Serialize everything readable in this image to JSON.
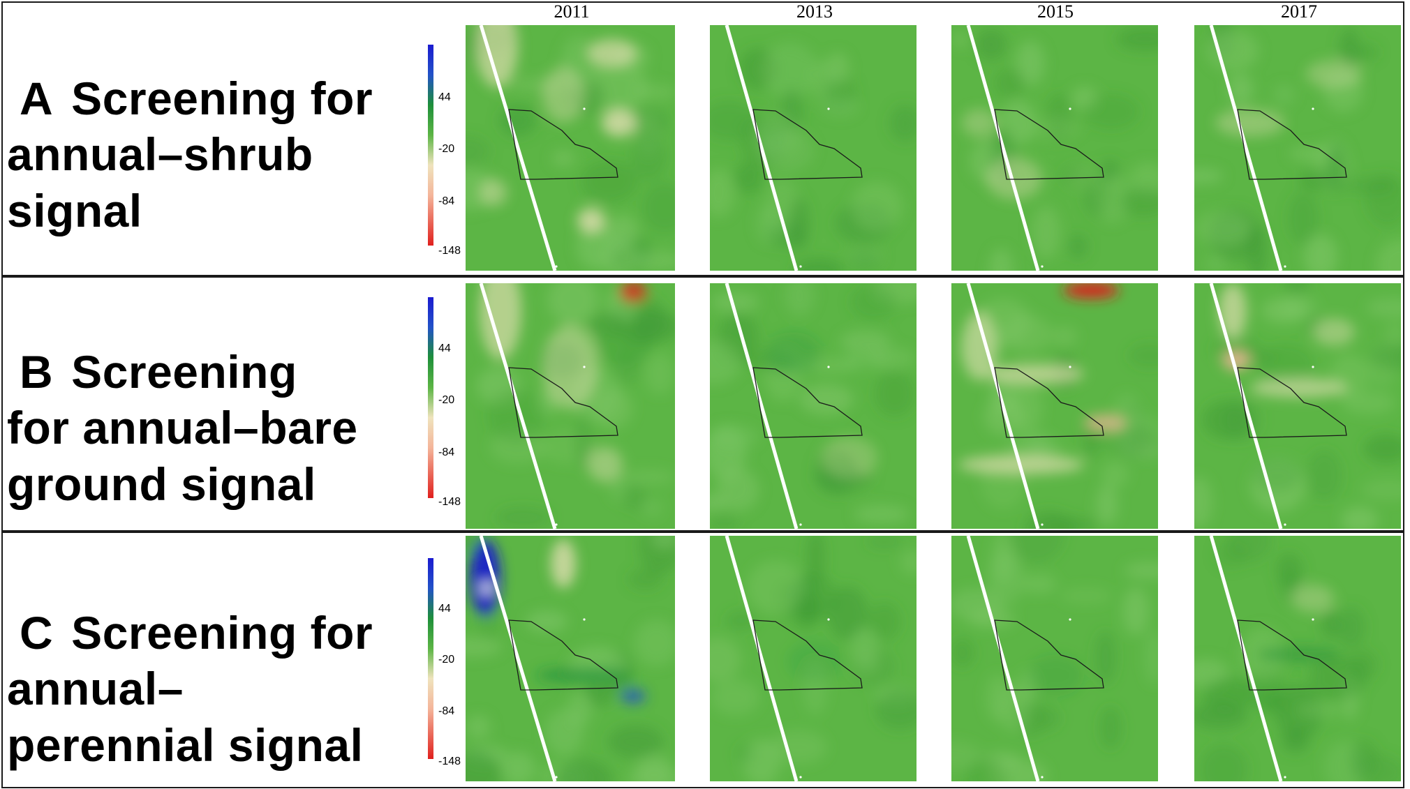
{
  "years": [
    "2011",
    "2013",
    "2015",
    "2017"
  ],
  "rows": [
    {
      "id": "a",
      "letter": "A",
      "title": "Screening for\nannual–shrub\nsignal",
      "ticks": [
        "44",
        "-20",
        "-84",
        "-148"
      ]
    },
    {
      "id": "b",
      "letter": "B",
      "title": "Screening\nfor annual–bare\nground signal",
      "ticks": [
        "44",
        "-20",
        "-84",
        "-148"
      ]
    },
    {
      "id": "c",
      "letter": "C",
      "title": "Screening for\nannual–\nperennial signal",
      "ticks": [
        "44",
        "-20",
        "-84",
        "-148"
      ]
    }
  ],
  "colors": {
    "low": "#e0201d",
    "mid": "#efe3bd",
    "green": "#5cb545",
    "dark_green": "#1e8f3a",
    "high": "#1b1bd0"
  }
}
